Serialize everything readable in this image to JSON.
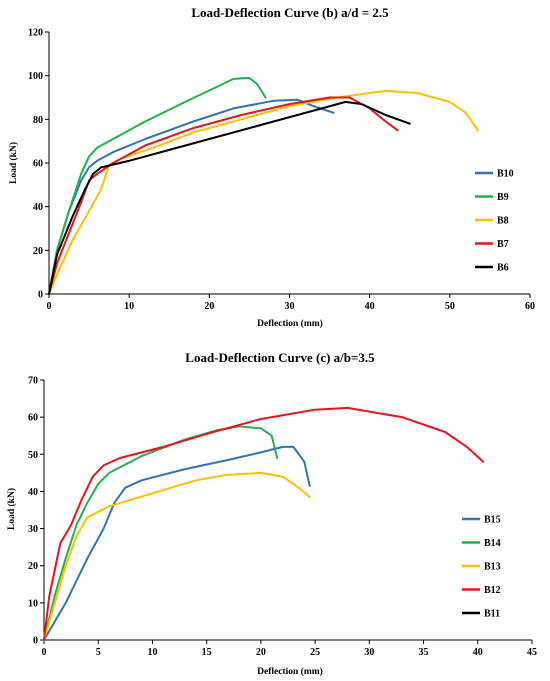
{
  "chart_data": [
    {
      "type": "line",
      "title": "Load-Deflection Curve (b) a/d = 2.5",
      "xlabel": "Deflection (mm)",
      "ylabel": "Load (kN)",
      "xlim": [
        0,
        60
      ],
      "ylim": [
        0,
        120
      ],
      "xticks": [
        0,
        10,
        20,
        30,
        40,
        50,
        60
      ],
      "yticks": [
        0,
        20,
        40,
        60,
        80,
        100,
        120
      ],
      "grid": false,
      "legend_position": "right",
      "series": [
        {
          "name": "B10",
          "color": "#2e75b6",
          "points": [
            [
              0,
              0
            ],
            [
              1,
              20
            ],
            [
              2.5,
              38
            ],
            [
              4,
              52
            ],
            [
              5,
              58
            ],
            [
              6,
              61
            ],
            [
              8,
              65
            ],
            [
              12,
              71
            ],
            [
              18,
              79
            ],
            [
              23,
              85
            ],
            [
              28,
              88.5
            ],
            [
              31,
              89
            ],
            [
              33,
              86
            ],
            [
              35.5,
              83
            ]
          ]
        },
        {
          "name": "B9",
          "color": "#22b14c",
          "points": [
            [
              0,
              0
            ],
            [
              1,
              20
            ],
            [
              2.5,
              38
            ],
            [
              4,
              55
            ],
            [
              5,
              63
            ],
            [
              6,
              67
            ],
            [
              8,
              71
            ],
            [
              12,
              79
            ],
            [
              17,
              88
            ],
            [
              21,
              95
            ],
            [
              23,
              98.5
            ],
            [
              25,
              99
            ],
            [
              26,
              96
            ],
            [
              27,
              90
            ]
          ]
        },
        {
          "name": "B8",
          "color": "#ffc000",
          "points": [
            [
              0,
              0
            ],
            [
              1,
              9
            ],
            [
              3,
              25
            ],
            [
              5,
              38
            ],
            [
              6.5,
              48
            ],
            [
              7.5,
              59
            ],
            [
              9,
              62
            ],
            [
              13,
              67
            ],
            [
              18,
              74
            ],
            [
              24,
              80
            ],
            [
              30,
              86
            ],
            [
              36,
              90
            ],
            [
              42,
              93
            ],
            [
              46,
              92
            ],
            [
              50,
              88
            ],
            [
              52,
              83
            ],
            [
              53.5,
              75
            ]
          ]
        },
        {
          "name": "B7",
          "color": "#e8141c",
          "points": [
            [
              0,
              0
            ],
            [
              1,
              14
            ],
            [
              2.5,
              28
            ],
            [
              4,
              42
            ],
            [
              5,
              52
            ],
            [
              6,
              55
            ],
            [
              8,
              60
            ],
            [
              12,
              68
            ],
            [
              18,
              76
            ],
            [
              24,
              82
            ],
            [
              30,
              87
            ],
            [
              35,
              90
            ],
            [
              37.5,
              90
            ],
            [
              40,
              85
            ],
            [
              42,
              79
            ],
            [
              43.5,
              75
            ]
          ]
        },
        {
          "name": "B6",
          "color": "#000000",
          "points": [
            [
              0,
              0
            ],
            [
              1,
              18
            ],
            [
              3,
              36
            ],
            [
              4.5,
              48
            ],
            [
              5.5,
              55
            ],
            [
              6.5,
              58
            ],
            [
              10,
              61
            ],
            [
              15,
              66
            ],
            [
              22,
              73
            ],
            [
              28,
              79
            ],
            [
              33,
              84
            ],
            [
              37,
              88
            ],
            [
              39,
              87
            ],
            [
              42,
              82
            ],
            [
              45,
              78
            ]
          ]
        }
      ]
    },
    {
      "type": "line",
      "title": "Load-Deflection Curve (c) a/b=3.5",
      "xlabel": "Deflection (mm)",
      "ylabel": "Load (kN)",
      "xlim": [
        0,
        45
      ],
      "ylim": [
        0,
        70
      ],
      "xticks": [
        0,
        5,
        10,
        15,
        20,
        25,
        30,
        35,
        40,
        45
      ],
      "yticks": [
        0,
        10,
        20,
        30,
        40,
        50,
        60,
        70
      ],
      "grid": false,
      "legend_position": "right",
      "series": [
        {
          "name": "B15",
          "color": "#2e75b6",
          "points": [
            [
              0,
              0
            ],
            [
              2,
              10
            ],
            [
              4,
              22
            ],
            [
              5.5,
              30
            ],
            [
              6.5,
              37
            ],
            [
              7.5,
              41
            ],
            [
              9,
              43
            ],
            [
              13,
              46
            ],
            [
              17,
              48.5
            ],
            [
              20,
              50.5
            ],
            [
              22,
              52
            ],
            [
              23,
              52
            ],
            [
              24,
              48
            ],
            [
              24.5,
              41.5
            ]
          ]
        },
        {
          "name": "B14",
          "color": "#22b14c",
          "points": [
            [
              0,
              0
            ],
            [
              1,
              12
            ],
            [
              2,
              22
            ],
            [
              3,
              31
            ],
            [
              4,
              37
            ],
            [
              5,
              42
            ],
            [
              6,
              45
            ],
            [
              9,
              49.5
            ],
            [
              13,
              54
            ],
            [
              16,
              56.5
            ],
            [
              18,
              57.5
            ],
            [
              20,
              57
            ],
            [
              21,
              55
            ],
            [
              21.5,
              49
            ]
          ]
        },
        {
          "name": "B13",
          "color": "#ffc000",
          "points": [
            [
              0,
              0
            ],
            [
              1,
              10
            ],
            [
              2,
              20
            ],
            [
              3,
              28
            ],
            [
              4,
              33
            ],
            [
              6,
              36
            ],
            [
              10,
              39.5
            ],
            [
              14,
              43
            ],
            [
              17,
              44.5
            ],
            [
              20,
              45
            ],
            [
              22,
              44
            ],
            [
              23.5,
              41
            ],
            [
              24.5,
              38.5
            ]
          ]
        },
        {
          "name": "B12",
          "color": "#e8141c",
          "points": [
            [
              0,
              0
            ],
            [
              0.5,
              12
            ],
            [
              1.5,
              26
            ],
            [
              2.5,
              31
            ],
            [
              3.5,
              38
            ],
            [
              4.5,
              44
            ],
            [
              5.5,
              47
            ],
            [
              7,
              49
            ],
            [
              11,
              52
            ],
            [
              15,
              55.5
            ],
            [
              20,
              59.5
            ],
            [
              25,
              62
            ],
            [
              28,
              62.5
            ],
            [
              33,
              60
            ],
            [
              37,
              56
            ],
            [
              39,
              52
            ],
            [
              40.5,
              48
            ]
          ]
        },
        {
          "name": "B11",
          "color": "#000000",
          "points": []
        }
      ]
    }
  ]
}
